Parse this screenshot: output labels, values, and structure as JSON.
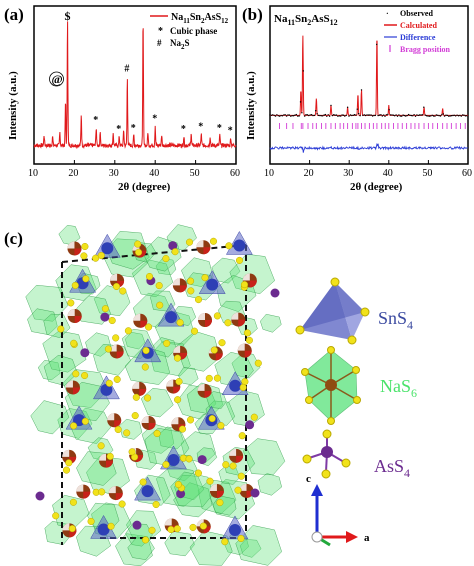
{
  "figure": {
    "panel_a": {
      "label": "(a)",
      "ylabel": "Intensity (a.u.)",
      "xlabel": "2θ (degree)",
      "xticks": [
        "10",
        "20",
        "30",
        "40",
        "50",
        "60"
      ],
      "legend": {
        "series_prefix": "Na",
        "series_name": "Na11Sn2AsS12",
        "cubic_marker": "*",
        "cubic_label": "Cubic phase",
        "na2s_marker": "#",
        "na2s_label": "Na2S"
      },
      "markers": {
        "dollar": "$",
        "at": "@",
        "hash": "#",
        "star": "*"
      },
      "colors": {
        "line": "#e0191b"
      }
    },
    "panel_b": {
      "label": "(b)",
      "title": "Na11Sn2AsS12",
      "ylabel": "Intensity (a.u.)",
      "xlabel": "2θ (degree)",
      "xticks": [
        "10",
        "20",
        "30",
        "40",
        "50",
        "60"
      ],
      "legend": [
        "Observed",
        "Calculated",
        "Difference",
        "Bragg position"
      ],
      "colors": {
        "observed": "#000000",
        "calculated": "#e0191b",
        "difference": "#2a3bd6",
        "bragg": "#d23bd6"
      }
    },
    "panel_c": {
      "label": "(c)",
      "legend": [
        {
          "name": "SnS",
          "sub": "4",
          "color": "#3b4aa0"
        },
        {
          "name": "NaS",
          "sub": "6",
          "color": "#4be36b"
        },
        {
          "name": "AsS",
          "sub": "4",
          "color": "#6b2b8f"
        }
      ],
      "axes": {
        "c": "c",
        "a": "a"
      }
    }
  },
  "chart_data": [
    {
      "type": "line",
      "panel": "a",
      "xlabel": "2θ (degree)",
      "ylabel": "Intensity (a.u.)",
      "xlim": [
        10,
        60
      ],
      "series": [
        {
          "name": "Na11Sn2AsS12",
          "peaks": [
            {
              "x": 12.5,
              "y": 0.08
            },
            {
              "x": 14.6,
              "y": 0.07
            },
            {
              "x": 16.4,
              "y": 0.1
            },
            {
              "x": 17.8,
              "y": 0.34
            },
            {
              "x": 18.3,
              "y": 0.98
            },
            {
              "x": 21.7,
              "y": 0.24
            },
            {
              "x": 25.4,
              "y": 0.14
            },
            {
              "x": 26.4,
              "y": 0.1
            },
            {
              "x": 29.6,
              "y": 0.1
            },
            {
              "x": 31.1,
              "y": 0.07
            },
            {
              "x": 32.2,
              "y": 0.12
            },
            {
              "x": 33.1,
              "y": 0.52
            },
            {
              "x": 34.7,
              "y": 0.08
            },
            {
              "x": 37.0,
              "y": 0.98
            },
            {
              "x": 38.2,
              "y": 0.1
            },
            {
              "x": 40.0,
              "y": 0.15
            },
            {
              "x": 41.6,
              "y": 0.08
            },
            {
              "x": 47.1,
              "y": 0.07
            },
            {
              "x": 48.9,
              "y": 0.1
            },
            {
              "x": 51.4,
              "y": 0.09
            },
            {
              "x": 53.6,
              "y": 0.07
            },
            {
              "x": 56.0,
              "y": 0.08
            },
            {
              "x": 58.7,
              "y": 0.06
            }
          ]
        }
      ],
      "annotations": [
        {
          "text": "$",
          "x": 18.3
        },
        {
          "text": "@",
          "x": 17.8
        },
        {
          "text": "#",
          "x": 33.1
        },
        {
          "text": "*",
          "x": 25.4
        },
        {
          "text": "*",
          "x": 31.1
        },
        {
          "text": "*",
          "x": 34.7
        },
        {
          "text": "*",
          "x": 40.0
        },
        {
          "text": "*",
          "x": 47.1
        },
        {
          "text": "*",
          "x": 51.4
        },
        {
          "text": "*",
          "x": 56.0
        },
        {
          "text": "*",
          "x": 58.7
        }
      ]
    },
    {
      "type": "line",
      "panel": "b",
      "xlabel": "2θ (degree)",
      "ylabel": "Intensity (a.u.)",
      "xlim": [
        10,
        60
      ],
      "series": [
        {
          "name": "Calculated",
          "peaks": [
            {
              "x": 18.3,
              "y": 0.95
            },
            {
              "x": 17.8,
              "y": 0.3
            },
            {
              "x": 21.7,
              "y": 0.2
            },
            {
              "x": 25.4,
              "y": 0.12
            },
            {
              "x": 29.6,
              "y": 0.1
            },
            {
              "x": 32.2,
              "y": 0.25
            },
            {
              "x": 33.1,
              "y": 0.3
            },
            {
              "x": 37.0,
              "y": 0.95
            },
            {
              "x": 40.0,
              "y": 0.12
            },
            {
              "x": 48.9,
              "y": 0.1
            },
            {
              "x": 53.6,
              "y": 0.08
            }
          ]
        },
        {
          "name": "Bragg position",
          "positions": [
            12.4,
            14.2,
            15.8,
            17.9,
            18.3,
            19.6,
            20.8,
            21.7,
            23.0,
            24.1,
            25.4,
            26.5,
            27.7,
            28.6,
            29.6,
            30.8,
            31.7,
            32.2,
            33.1,
            34.0,
            35.1,
            36.1,
            37.0,
            38.2,
            39.1,
            40.0,
            41.2,
            42.3,
            43.4,
            44.5,
            45.6,
            46.6,
            47.6,
            48.9,
            50.0,
            51.1,
            52.3,
            53.6,
            54.7,
            55.8,
            57.0,
            58.1,
            59.3
          ]
        }
      ]
    }
  ]
}
